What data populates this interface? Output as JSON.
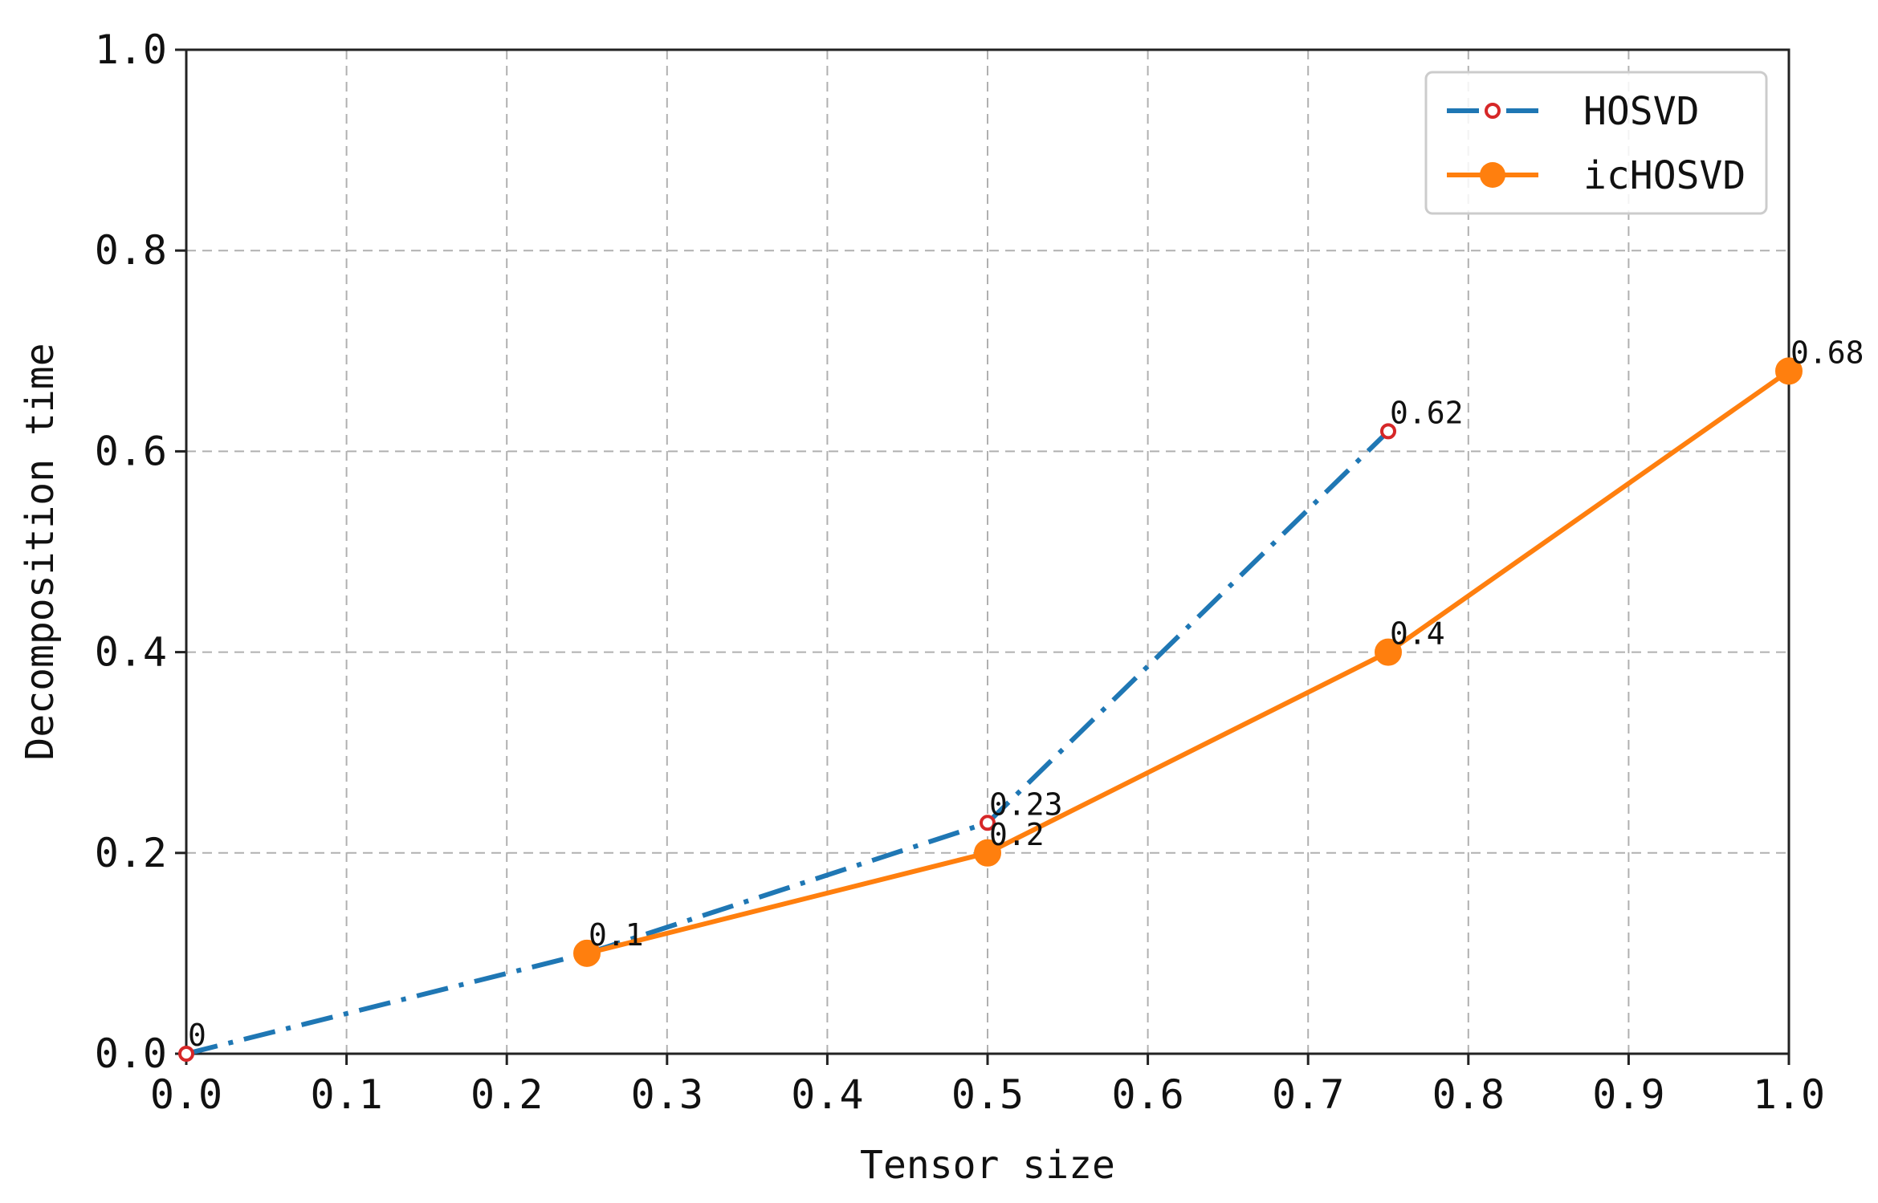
{
  "chart_data": {
    "type": "line",
    "title": "",
    "xlabel": "Tensor size",
    "ylabel": "Decomposition time",
    "xlim": [
      0.0,
      1.0
    ],
    "ylim": [
      0.0,
      1.0
    ],
    "xticks": [
      "0.0",
      "0.1",
      "0.2",
      "0.3",
      "0.4",
      "0.5",
      "0.6",
      "0.7",
      "0.8",
      "0.9",
      "1.0"
    ],
    "yticks": [
      "0.0",
      "0.2",
      "0.4",
      "0.6",
      "0.8",
      "1.0"
    ],
    "grid": true,
    "legend_position": "top-right",
    "series": [
      {
        "name": "HOSVD",
        "color": "#1f77b4",
        "marker_color": "#d62728",
        "line_style": "dash-dot",
        "marker": "hollow-circle",
        "x": [
          0.0,
          0.25,
          0.5,
          0.75
        ],
        "y": [
          0.0,
          0.1,
          0.23,
          0.62
        ],
        "labels": [
          "0",
          "0.1",
          "0.23",
          "0.62"
        ]
      },
      {
        "name": "icHOSVD",
        "color": "#ff7f0e",
        "line_style": "solid",
        "marker": "filled-circle",
        "x": [
          0.25,
          0.5,
          0.75,
          1.0
        ],
        "y": [
          0.1,
          0.2,
          0.4,
          0.68
        ],
        "labels": [
          "",
          "0.2",
          "0.4",
          "0.68"
        ]
      }
    ]
  }
}
